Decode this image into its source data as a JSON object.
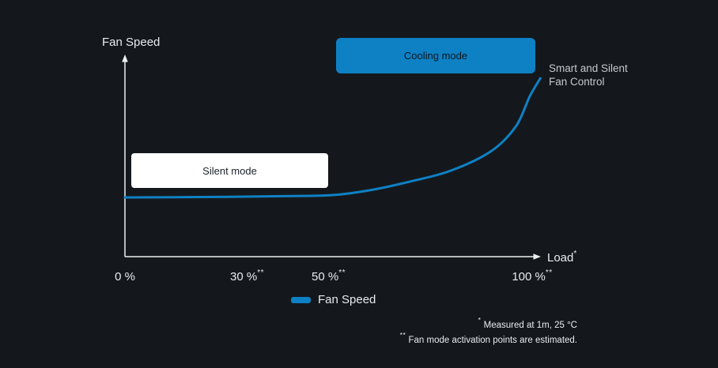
{
  "chart": {
    "y_axis_title": "Fan Speed",
    "x_axis_title": "Load",
    "x_axis_title_marker": "*",
    "x_ticks": [
      {
        "label": "0 %",
        "marker": "",
        "load": 0
      },
      {
        "label": "30 %",
        "marker": "**",
        "load": 30
      },
      {
        "label": "50 %",
        "marker": "**",
        "load": 50
      },
      {
        "label": "100 %",
        "marker": "**",
        "load": 100
      }
    ],
    "cooling_mode_label": "Cooling mode",
    "silent_mode_label": "Silent mode",
    "curve_label_line1": "Smart and Silent",
    "curve_label_line2": "Fan Control"
  },
  "legend": {
    "fan_speed_label": "Fan Speed"
  },
  "footnotes": [
    {
      "marker": "*",
      "text": " Measured at 1m, 25 °C"
    },
    {
      "marker": "**",
      "text": " Fan mode activation points are estimated."
    }
  ],
  "colors": {
    "background": "#14181c",
    "accent": "#0e81c5",
    "axis": "#eef0f2",
    "text-light": "#e9ecee",
    "text-muted": "#c5c9cc",
    "badge-text-dark": "#0f151b",
    "silent-bg": "#ffffff",
    "silent-text": "#1b2129"
  },
  "chart_data": {
    "type": "line",
    "title": "",
    "xlabel": "Load* (%)",
    "ylabel": "Fan Speed (relative, no numeric scale shown)",
    "xlim": [
      0,
      102
    ],
    "ylim": [
      0,
      1
    ],
    "grid": false,
    "legend_position": "bottom-center",
    "x_ticks_load_percent": [
      0,
      30,
      50,
      100
    ],
    "series": [
      {
        "name": "Fan Speed",
        "x_load_percent": [
          0,
          18,
          37,
          51,
          61,
          70,
          80,
          90,
          96,
          99.4,
          102
        ],
        "y_relative_fan_speed": [
          0.294,
          0.296,
          0.3,
          0.306,
          0.333,
          0.373,
          0.427,
          0.525,
          0.647,
          0.796,
          0.886
        ]
      }
    ],
    "annotations": [
      "Silent mode (flat low-speed region up to ~50 % load)",
      "Cooling mode (rising-speed region above ~50 % load)",
      "Smart and Silent Fan Control (curve end label)"
    ],
    "footnotes": [
      "* Measured at 1m, 25 °C",
      "** Fan mode activation points are estimated."
    ]
  }
}
